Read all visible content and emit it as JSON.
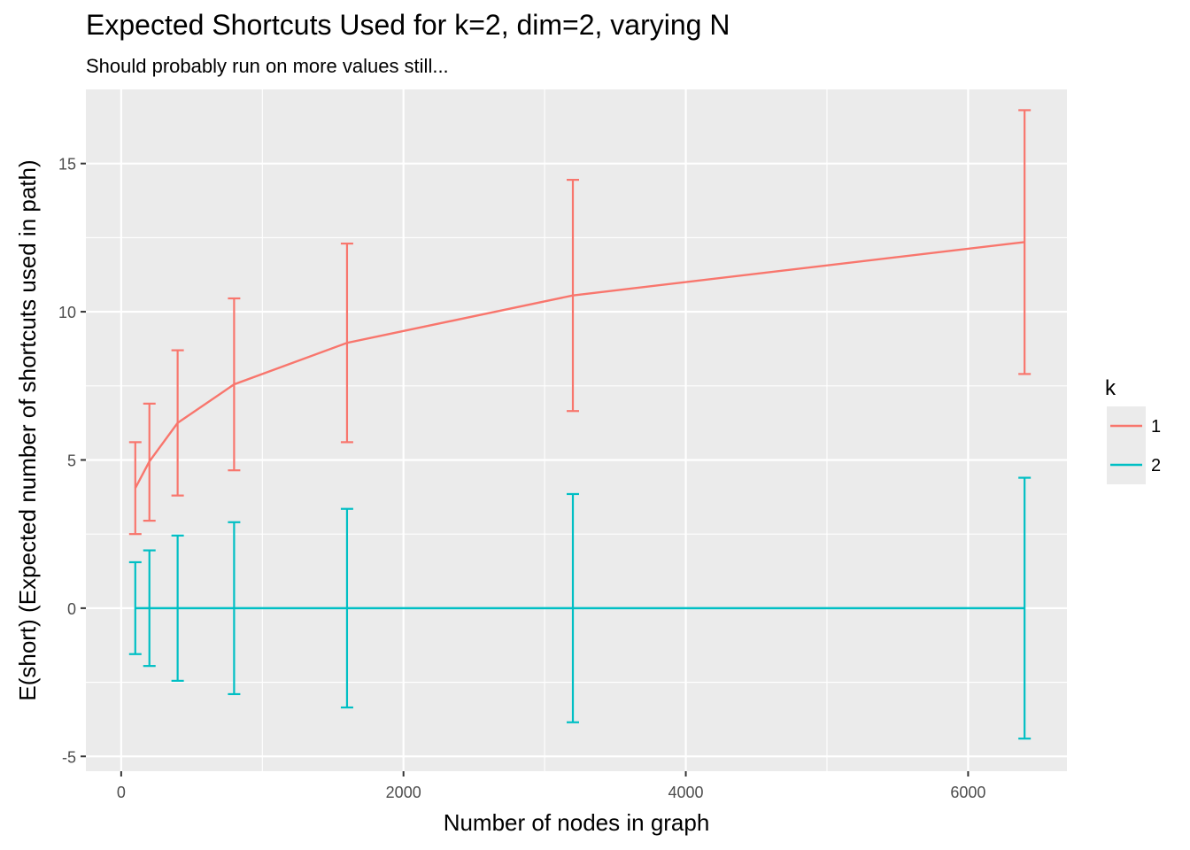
{
  "chart_data": {
    "type": "line",
    "title": "Expected Shortcuts Used for k=2, dim=2, varying N",
    "subtitle": "Should probably run on more values still...",
    "xlabel": "Number of nodes in graph",
    "ylabel": "E(short) (Expected number of shortcuts used in path)",
    "xlim": [
      -250,
      6700
    ],
    "ylim": [
      -5.5,
      17.5
    ],
    "x_ticks": [
      0,
      2000,
      4000,
      6000
    ],
    "x_tick_labels": [
      "0",
      "2000",
      "4000",
      "6000"
    ],
    "y_ticks": [
      -5,
      0,
      5,
      10,
      15
    ],
    "y_tick_labels": [
      "-5",
      "0",
      "5",
      "10",
      "15"
    ],
    "grid": true,
    "legend": {
      "title": "k",
      "position": "right"
    },
    "series": [
      {
        "name": "1",
        "color": "#F8766D",
        "points": [
          {
            "x": 100,
            "y": 4.05,
            "ymin": 2.5,
            "ymax": 5.6
          },
          {
            "x": 200,
            "y": 4.95,
            "ymin": 2.95,
            "ymax": 6.9
          },
          {
            "x": 400,
            "y": 6.25,
            "ymin": 3.8,
            "ymax": 8.7
          },
          {
            "x": 800,
            "y": 7.55,
            "ymin": 4.65,
            "ymax": 10.45
          },
          {
            "x": 1600,
            "y": 8.95,
            "ymin": 5.6,
            "ymax": 12.3
          },
          {
            "x": 3200,
            "y": 10.55,
            "ymin": 6.65,
            "ymax": 14.45
          },
          {
            "x": 6400,
            "y": 12.35,
            "ymin": 7.9,
            "ymax": 16.8
          }
        ]
      },
      {
        "name": "2",
        "color": "#00BFC4",
        "points": [
          {
            "x": 100,
            "y": 0,
            "ymin": -1.55,
            "ymax": 1.55
          },
          {
            "x": 200,
            "y": 0,
            "ymin": -1.95,
            "ymax": 1.95
          },
          {
            "x": 400,
            "y": 0,
            "ymin": -2.45,
            "ymax": 2.45
          },
          {
            "x": 800,
            "y": 0,
            "ymin": -2.9,
            "ymax": 2.9
          },
          {
            "x": 1600,
            "y": 0,
            "ymin": -3.35,
            "ymax": 3.35
          },
          {
            "x": 3200,
            "y": 0,
            "ymin": -3.85,
            "ymax": 3.85
          },
          {
            "x": 6400,
            "y": 0,
            "ymin": -4.4,
            "ymax": 4.4
          }
        ]
      }
    ]
  },
  "colors": {
    "panel_background": "#EBEBEB",
    "grid_major": "#FFFFFF",
    "series_1": "#F8766D",
    "series_2": "#00BFC4"
  }
}
